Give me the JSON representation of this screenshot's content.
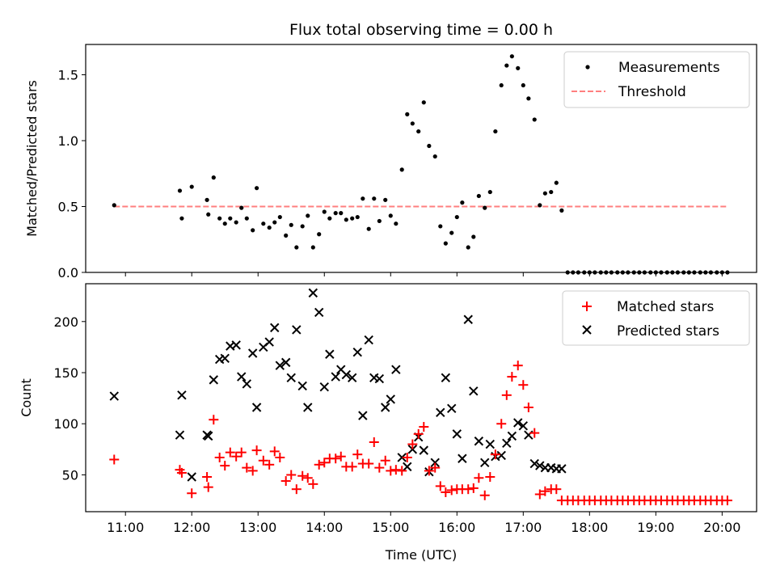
{
  "title": "Flux total observing time = 0.00 h",
  "chart_data": [
    {
      "type": "scatter",
      "ylabel": "Matched/Predicted stars",
      "xlabel": "",
      "xlim_hours": [
        10.4,
        20.52
      ],
      "ylim": [
        0,
        1.73
      ],
      "yticks": [
        0.0,
        0.5,
        1.0,
        1.5
      ],
      "ytick_labels": [
        "0.0",
        "0.5",
        "1.0",
        "1.5"
      ],
      "grid": false,
      "legend_position": "top-right",
      "threshold": {
        "name": "Threshold",
        "value": 0.5,
        "x_range_hours": [
          10.83,
          20.08
        ],
        "color": "#ff7f7f",
        "style": "dashed"
      },
      "series": [
        {
          "name": "Measurements",
          "marker": "dot",
          "color": "#000000",
          "x_hours": [
            10.83,
            11.82,
            11.85,
            12.0,
            12.23,
            12.25,
            12.33,
            12.42,
            12.5,
            12.58,
            12.67,
            12.75,
            12.83,
            12.92,
            12.98,
            13.08,
            13.17,
            13.25,
            13.33,
            13.42,
            13.5,
            13.58,
            13.67,
            13.75,
            13.83,
            13.92,
            14.0,
            14.08,
            14.17,
            14.25,
            14.33,
            14.42,
            14.5,
            14.58,
            14.67,
            14.75,
            14.83,
            14.92,
            15.0,
            15.08,
            15.17,
            15.25,
            15.33,
            15.42,
            15.5,
            15.58,
            15.67,
            15.75,
            15.83,
            15.92,
            16.0,
            16.08,
            16.17,
            16.25,
            16.33,
            16.42,
            16.5,
            16.58,
            16.67,
            16.75,
            16.83,
            16.92,
            17.0,
            17.08,
            17.17,
            17.25,
            17.33,
            17.42,
            17.5,
            17.58,
            17.67,
            17.75,
            17.83,
            17.92,
            18.0,
            18.08,
            18.17,
            18.25,
            18.33,
            18.42,
            18.5,
            18.58,
            18.67,
            18.75,
            18.83,
            18.92,
            19.0,
            19.08,
            19.17,
            19.25,
            19.33,
            19.42,
            19.5,
            19.58,
            19.67,
            19.75,
            19.83,
            19.92,
            20.0,
            20.08
          ],
          "y": [
            0.51,
            0.62,
            0.41,
            0.65,
            0.55,
            0.44,
            0.72,
            0.41,
            0.37,
            0.41,
            0.38,
            0.49,
            0.41,
            0.32,
            0.64,
            0.37,
            0.34,
            0.38,
            0.42,
            0.28,
            0.36,
            0.19,
            0.35,
            0.43,
            0.19,
            0.29,
            0.46,
            0.41,
            0.45,
            0.45,
            0.4,
            0.41,
            0.42,
            0.56,
            0.33,
            0.56,
            0.39,
            0.55,
            0.43,
            0.37,
            0.78,
            1.2,
            1.13,
            1.07,
            1.29,
            0.96,
            0.88,
            0.35,
            0.22,
            0.3,
            0.42,
            0.53,
            0.19,
            0.27,
            0.58,
            0.49,
            0.61,
            1.07,
            1.42,
            1.57,
            1.64,
            1.55,
            1.42,
            1.32,
            1.16,
            0.51,
            0.6,
            0.61,
            0.68,
            0.47,
            0.0,
            0.0,
            0.0,
            0.0,
            0.0,
            0.0,
            0.0,
            0.0,
            0.0,
            0.0,
            0.0,
            0.0,
            0.0,
            0.0,
            0.0,
            0.0,
            0.0,
            0.0,
            0.0,
            0.0,
            0.0,
            0.0,
            0.0,
            0.0,
            0.0,
            0.0,
            0.0,
            0.0,
            0.0,
            0.0
          ]
        }
      ]
    },
    {
      "type": "scatter",
      "ylabel": "Count",
      "xlabel": "Time (UTC)",
      "xlim_hours": [
        10.4,
        20.52
      ],
      "ylim": [
        14,
        237
      ],
      "yticks": [
        50,
        100,
        150,
        200
      ],
      "ytick_labels": [
        "50",
        "100",
        "150",
        "200"
      ],
      "xticks_hours": [
        11,
        12,
        13,
        14,
        15,
        16,
        17,
        18,
        19,
        20
      ],
      "xtick_labels": [
        "11:00",
        "12:00",
        "13:00",
        "14:00",
        "15:00",
        "16:00",
        "17:00",
        "18:00",
        "19:00",
        "20:00"
      ],
      "grid": false,
      "legend_position": "top-right",
      "series": [
        {
          "name": "Matched stars",
          "marker": "plus",
          "color": "#ff0000",
          "x_hours": [
            10.83,
            11.82,
            11.85,
            12.0,
            12.23,
            12.25,
            12.33,
            12.42,
            12.5,
            12.58,
            12.67,
            12.75,
            12.83,
            12.92,
            12.98,
            13.08,
            13.17,
            13.25,
            13.33,
            13.42,
            13.5,
            13.58,
            13.67,
            13.75,
            13.83,
            13.92,
            14.0,
            14.08,
            14.17,
            14.25,
            14.33,
            14.42,
            14.5,
            14.58,
            14.67,
            14.75,
            14.83,
            14.92,
            15.0,
            15.08,
            15.17,
            15.25,
            15.33,
            15.42,
            15.5,
            15.58,
            15.67,
            15.75,
            15.83,
            15.92,
            16.0,
            16.08,
            16.17,
            16.25,
            16.33,
            16.42,
            16.5,
            16.58,
            16.67,
            16.75,
            16.83,
            16.92,
            17.0,
            17.08,
            17.17,
            17.25,
            17.33,
            17.42,
            17.5,
            17.58,
            17.67,
            17.75,
            17.83,
            17.92,
            18.0,
            18.08,
            18.17,
            18.25,
            18.33,
            18.42,
            18.5,
            18.58,
            18.67,
            18.75,
            18.83,
            18.92,
            19.0,
            19.08,
            19.17,
            19.25,
            19.33,
            19.42,
            19.5,
            19.58,
            19.67,
            19.75,
            19.83,
            19.92,
            20.0,
            20.08
          ],
          "y": [
            65,
            55,
            52,
            32,
            48,
            38,
            104,
            67,
            59,
            72,
            68,
            72,
            57,
            54,
            74,
            64,
            60,
            73,
            67,
            44,
            50,
            36,
            49,
            47,
            41,
            60,
            62,
            66,
            66,
            68,
            58,
            58,
            70,
            61,
            61,
            82,
            57,
            64,
            54,
            55,
            54,
            67,
            80,
            90,
            97,
            54,
            57,
            39,
            33,
            35,
            36,
            36,
            36,
            37,
            47,
            30,
            48,
            70,
            100,
            128,
            146,
            157,
            138,
            116,
            91,
            31,
            34,
            36,
            36,
            25,
            25,
            25,
            25,
            25,
            25,
            25,
            25,
            25,
            25,
            25,
            25,
            25,
            25,
            25,
            25,
            25,
            25,
            25,
            25,
            25,
            25,
            25,
            25,
            25,
            25,
            25,
            25,
            25,
            25,
            25
          ]
        },
        {
          "name": "Predicted stars",
          "marker": "x",
          "color": "#000000",
          "x_hours": [
            10.83,
            11.82,
            11.85,
            12.0,
            12.23,
            12.25,
            12.33,
            12.42,
            12.5,
            12.58,
            12.67,
            12.75,
            12.83,
            12.92,
            12.98,
            13.08,
            13.17,
            13.25,
            13.33,
            13.42,
            13.5,
            13.58,
            13.67,
            13.75,
            13.83,
            13.92,
            14.0,
            14.08,
            14.17,
            14.25,
            14.33,
            14.42,
            14.5,
            14.58,
            14.67,
            14.75,
            14.83,
            14.92,
            15.0,
            15.08,
            15.17,
            15.25,
            15.33,
            15.42,
            15.5,
            15.58,
            15.67,
            15.75,
            15.83,
            15.92,
            16.0,
            16.08,
            16.17,
            16.25,
            16.33,
            16.42,
            16.5,
            16.58,
            16.67,
            16.75,
            16.83,
            16.92,
            17.0,
            17.08,
            17.17,
            17.25,
            17.33,
            17.42,
            17.5,
            17.58
          ],
          "y": [
            127,
            89,
            128,
            48,
            89,
            88,
            143,
            163,
            164,
            176,
            177,
            146,
            139,
            169,
            116,
            175,
            180,
            194,
            157,
            160,
            145,
            192,
            137,
            116,
            228,
            209,
            136,
            168,
            146,
            153,
            148,
            145,
            170,
            108,
            182,
            145,
            144,
            116,
            124,
            153,
            67,
            58,
            75,
            87,
            74,
            53,
            62,
            111,
            145,
            115,
            90,
            66,
            202,
            132,
            83,
            62,
            80,
            68,
            69,
            81,
            88,
            101,
            98,
            89,
            61,
            59,
            57,
            57,
            56,
            56
          ]
        }
      ]
    }
  ]
}
